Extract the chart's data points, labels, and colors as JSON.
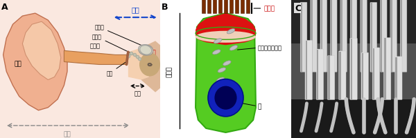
{
  "panel_A": "A",
  "panel_B": "B",
  "panel_C": "C",
  "bg_white": "#ffffff",
  "skin_bg": "#fae8e0",
  "skin_fill": "#f0b090",
  "skin_edge": "#c07050",
  "canal_fill": "#e8a060",
  "canal_edge": "#b07040",
  "mid_ear_fill": "#f5d0b0",
  "inner_bone_fill": "#deb898",
  "cochlea_fill": "#c8a878",
  "cochlea_spiral": "#706050",
  "semi_edge": "#909090",
  "semi_fill": "#d0d0c0",
  "ossicle_color": "#b0b0a0",
  "eardrum_color": "#a06040",
  "ridge_color": "#d09070",
  "inner_ear_lbl": "内耳",
  "semicircular_lbl": "半規管",
  "ossicles_lbl": "耳小骨",
  "cochlea_lbl": "蝕牛",
  "outer_canal_lbl": "外耳道",
  "eardrum_lbl": "鼓膜",
  "middle_ear_lbl": "中耳",
  "pinna_lbl": "耳介",
  "outer_ear_lbl": "外耳",
  "sensory_hair_lbl": "感覚毛",
  "mitochondria_lbl": "ミトコンドリア",
  "cell_body_lbl": "細胞体",
  "nucleus_lbl": "核",
  "blue_arrow": "#1144cc",
  "red_text": "#cc1111",
  "gray_arrow": "#888888",
  "cell_green_outer": "#33aa11",
  "cell_green_inner": "#55cc22",
  "cell_red_top": "#dd1111",
  "cell_nucleus_blue": "#1122bb",
  "cell_nucleus_dark": "#000055",
  "hair_brown": "#7a2e00",
  "hair_dark": "#4a1800",
  "em_bg": "#3a3a3a",
  "em_mid": "#555555",
  "em_top": "#2a2a2a",
  "em_base": "#181818",
  "cilia_light": "#d8d8d8",
  "cilia_shadow": "#a0a0a0",
  "cilia_front": "#e0e0e0"
}
